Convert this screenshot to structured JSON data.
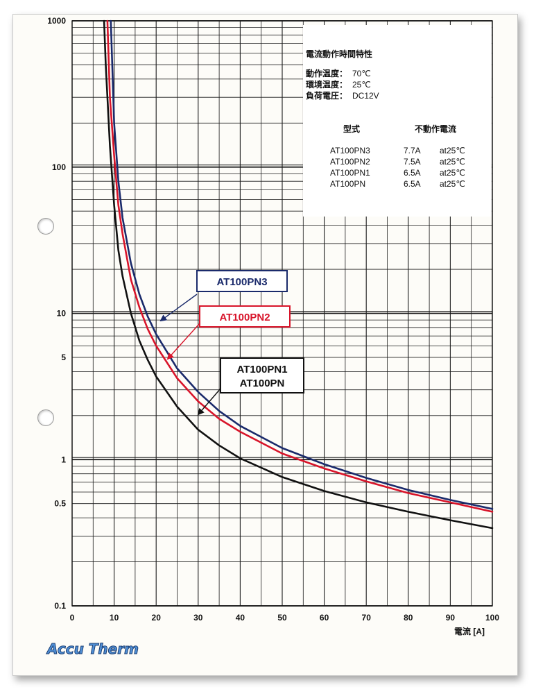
{
  "chart_data": {
    "type": "line",
    "y_scale": "log",
    "xlim": [
      0,
      100
    ],
    "ylim": [
      0.1,
      1000
    ],
    "x_ticks": [
      "0",
      "10",
      "20",
      "30",
      "40",
      "50",
      "60",
      "70",
      "80",
      "90",
      "100"
    ],
    "y_ticks": [
      {
        "value": 1000,
        "label": "1000"
      },
      {
        "value": 100,
        "label": "100"
      },
      {
        "value": 10,
        "label": "10"
      },
      {
        "value": 5,
        "label": "5"
      },
      {
        "value": 1,
        "label": "1"
      },
      {
        "value": 0.5,
        "label": "0.5"
      },
      {
        "value": 0.1,
        "label": "0.1"
      }
    ],
    "xlabel": "電流 [A]",
    "ylabel": "",
    "grid": true,
    "series": [
      {
        "name": "AT100PN3",
        "color": "#1a2a6b",
        "x": [
          9.2,
          10,
          11,
          12,
          14,
          16,
          18,
          20,
          25,
          30,
          35,
          40,
          50,
          60,
          70,
          80,
          90,
          100
        ],
        "y": [
          1000,
          200,
          80,
          45,
          22,
          13.5,
          9.5,
          7.2,
          4.2,
          2.9,
          2.15,
          1.7,
          1.2,
          0.93,
          0.75,
          0.62,
          0.53,
          0.46
        ]
      },
      {
        "name": "AT100PN2",
        "color": "#d8142a",
        "x": [
          8.4,
          9,
          10,
          11,
          12,
          14,
          16,
          18,
          20,
          25,
          30,
          35,
          40,
          50,
          60,
          70,
          80,
          90,
          100
        ],
        "y": [
          1000,
          300,
          120,
          55,
          35,
          17,
          11,
          7.8,
          6,
          3.6,
          2.5,
          1.9,
          1.55,
          1.1,
          0.87,
          0.71,
          0.59,
          0.51,
          0.44
        ]
      },
      {
        "name": "AT100PN1 / AT100PN",
        "color": "#111111",
        "x": [
          7.6,
          8,
          9,
          10,
          11,
          12,
          14,
          16,
          18,
          20,
          25,
          30,
          35,
          40,
          50,
          60,
          70,
          80,
          90,
          100
        ],
        "y": [
          1000,
          500,
          140,
          55,
          27,
          18,
          10,
          6.5,
          4.8,
          3.7,
          2.3,
          1.6,
          1.25,
          1.02,
          0.76,
          0.61,
          0.51,
          0.44,
          0.385,
          0.34
        ]
      }
    ],
    "annotations": [
      {
        "label": "AT100PN3",
        "target_series": 0,
        "color": "#1a2a6b"
      },
      {
        "label": "AT100PN2",
        "target_series": 1,
        "color": "#d8142a"
      },
      {
        "label_lines": [
          "AT100PN1",
          "AT100PN"
        ],
        "target_series": 2,
        "color": "#111111"
      }
    ]
  },
  "info": {
    "title": "電流動作時間特性",
    "conditions": [
      {
        "label": "動作温度：",
        "value": "70℃"
      },
      {
        "label": "環境温度：",
        "value": "25℃"
      },
      {
        "label": "負荷電圧：",
        "value": "DC12V"
      }
    ],
    "table": {
      "headers": [
        "型式",
        "不動作電流"
      ],
      "rows": [
        {
          "model": "AT100PN3",
          "current": "7.7A",
          "cond": "at25℃"
        },
        {
          "model": "AT100PN2",
          "current": "7.5A",
          "cond": "at25℃"
        },
        {
          "model": "AT100PN1",
          "current": "6.5A",
          "cond": "at25℃"
        },
        {
          "model": "AT100PN",
          "current": "6.5A",
          "cond": "at25℃"
        }
      ]
    }
  },
  "logo": {
    "text": "Accu Therm"
  }
}
